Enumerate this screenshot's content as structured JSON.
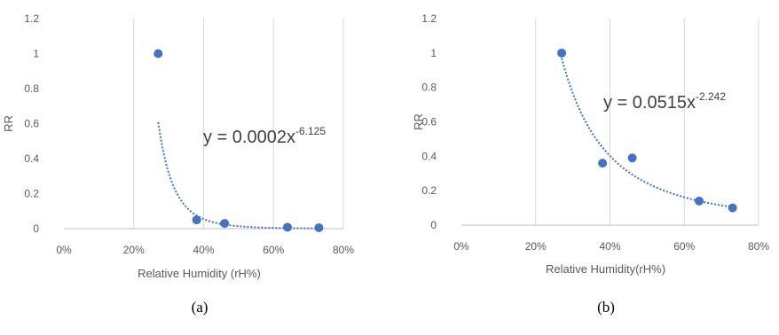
{
  "chart_data": [
    {
      "type": "scatter",
      "panel_label": "(a)",
      "xlabel": "Relative Humidity (rH%)",
      "ylabel": "RR",
      "x_ticks": [
        "0%",
        "20%",
        "40%",
        "60%",
        "80%"
      ],
      "y_ticks": [
        "0",
        "0.2",
        "0.4",
        "0.6",
        "0.8",
        "1",
        "1.2"
      ],
      "xlim": [
        0,
        0.8
      ],
      "ylim": [
        0,
        1.2
      ],
      "grid": "vertical",
      "x": [
        0.27,
        0.38,
        0.46,
        0.64,
        0.73
      ],
      "y": [
        1.0,
        0.05,
        0.03,
        0.008,
        0.005
      ],
      "trendline": {
        "type": "power",
        "coef": 0.0002,
        "exp": -6.125,
        "x_start": 0.27,
        "x_end": 0.73
      },
      "equation": {
        "base": "y = 0.0002x",
        "exponent": "-6.125"
      },
      "colors": {
        "marker": "#4472c4",
        "trend": "#4472c4",
        "grid": "#d9d9d9",
        "axis": "#bfbfbf"
      }
    },
    {
      "type": "scatter",
      "panel_label": "(b)",
      "xlabel": "Relative Humidity(rH%)",
      "ylabel": "RR",
      "x_ticks": [
        "0%",
        "20%",
        "40%",
        "60%",
        "80%"
      ],
      "y_ticks": [
        "0",
        "0.2",
        "0.4",
        "0.6",
        "0.8",
        "1",
        "1.2"
      ],
      "xlim": [
        0,
        0.8
      ],
      "ylim": [
        0,
        1.2
      ],
      "grid": "vertical",
      "x": [
        0.27,
        0.38,
        0.46,
        0.64,
        0.73
      ],
      "y": [
        1.0,
        0.36,
        0.39,
        0.14,
        0.1
      ],
      "trendline": {
        "type": "power",
        "coef": 0.0515,
        "exp": -2.242,
        "x_start": 0.27,
        "x_end": 0.73
      },
      "equation": {
        "base": "y = 0.0515x",
        "exponent": "-2.242"
      },
      "colors": {
        "marker": "#4472c4",
        "trend": "#4472c4",
        "grid": "#d9d9d9",
        "axis": "#bfbfbf"
      }
    }
  ]
}
